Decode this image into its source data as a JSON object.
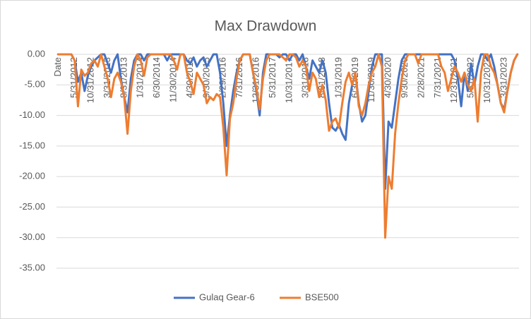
{
  "chart_data": {
    "type": "line",
    "title": "Max Drawdown",
    "categories": [
      "Date",
      null,
      null,
      null,
      null,
      "5/31/2012",
      null,
      null,
      null,
      null,
      "10/31/2012",
      null,
      null,
      null,
      null,
      "3/31/2013",
      null,
      null,
      null,
      null,
      "8/31/2013",
      null,
      null,
      null,
      null,
      "1/31/2014",
      null,
      null,
      null,
      null,
      "6/30/2014",
      null,
      null,
      null,
      null,
      "11/30/2014",
      null,
      null,
      null,
      null,
      "4/30/2015",
      null,
      null,
      null,
      null,
      "9/30/2015",
      null,
      null,
      null,
      null,
      "2/29/2016",
      null,
      null,
      null,
      null,
      "7/31/2016",
      null,
      null,
      null,
      null,
      "12/31/2016",
      null,
      null,
      null,
      null,
      "5/31/2017",
      null,
      null,
      null,
      null,
      "10/31/2017",
      null,
      null,
      null,
      null,
      "3/31/2018",
      null,
      null,
      null,
      null,
      "8/31/2018",
      null,
      null,
      null,
      null,
      "1/31/2019",
      null,
      null,
      null,
      null,
      "6/30/2019",
      null,
      null,
      null,
      null,
      "11/30/2019",
      null,
      null,
      null,
      null,
      "4/30/2020",
      null,
      null,
      null,
      null,
      "9/30/2020",
      null,
      null,
      null,
      null,
      "2/28/2021",
      null,
      null,
      null,
      null,
      "7/31/2021",
      null,
      null,
      null,
      null,
      "12/31/2021",
      null,
      null,
      null,
      null,
      "5/31/2022",
      null,
      null,
      null,
      null,
      "10/31/2022",
      null,
      null,
      null,
      null,
      "3/31/2023",
      null,
      null,
      null,
      null
    ],
    "series": [
      {
        "name": "Gulaq Gear-6",
        "color": "#4472c4",
        "values": [
          0,
          0,
          0,
          0,
          0,
          -1,
          -4.5,
          -3,
          -6,
          -3.5,
          -2,
          -1,
          -0.5,
          0,
          0,
          -1.5,
          -3,
          -1,
          0,
          -4,
          -7,
          -9.5,
          -4,
          -1,
          0,
          0,
          -1,
          0,
          0,
          0,
          0,
          0,
          0,
          -1,
          0,
          0,
          0,
          0,
          0,
          -1,
          -1.5,
          -0.5,
          -2,
          -1,
          -0.5,
          -2,
          -1,
          0,
          0,
          -3,
          -8,
          -15,
          -10,
          -6,
          -3,
          -1,
          0,
          0,
          0,
          -3,
          -6,
          -10,
          -3,
          0,
          0,
          0,
          0,
          -0.5,
          0,
          0,
          -1,
          0,
          0,
          -1,
          0,
          -2,
          -4,
          -1,
          -2,
          -3,
          -1,
          -3,
          -8,
          -12,
          -12.5,
          -11.5,
          -13,
          -14,
          -8,
          -5,
          -3,
          -8,
          -11,
          -10,
          -6,
          -2,
          0,
          0,
          0,
          -22,
          -11,
          -12,
          -8,
          -4,
          -1,
          0,
          0,
          0,
          0,
          0,
          0,
          0,
          0,
          0,
          0,
          0,
          0,
          0,
          0,
          0,
          -1,
          -4,
          -8.5,
          -3,
          -6,
          -1.5,
          -5,
          -2,
          0,
          0,
          -1,
          0,
          -2,
          -5,
          -8,
          -9,
          -6,
          -3,
          -1,
          0
        ]
      },
      {
        "name": "BSE500",
        "color": "#ed7d31",
        "values": [
          0,
          0,
          0,
          0,
          0,
          -1,
          -8.5,
          -2.5,
          -3.5,
          -3,
          -1.5,
          -1,
          -2,
          0,
          -2,
          -4,
          -7,
          -4,
          -3,
          -4.5,
          -7,
          -13,
          -6,
          -2,
          0,
          -1,
          -3.5,
          -0.5,
          0,
          0,
          0,
          0,
          0,
          0,
          0,
          -1,
          -2.5,
          0,
          0,
          -3,
          -4.5,
          -6.5,
          -3,
          -4,
          -5,
          -8,
          -7,
          -7.5,
          -6.5,
          -7,
          -12,
          -19.8,
          -10.5,
          -8,
          -4,
          -1,
          0,
          0,
          0,
          -3,
          -5.5,
          -9,
          -4,
          -1,
          0,
          0,
          0,
          0,
          -0.5,
          -1,
          0,
          0,
          -0.5,
          -2,
          -1,
          -2,
          -6,
          -3,
          -4,
          -7,
          -5,
          -7.5,
          -12.5,
          -11,
          -10.5,
          -12,
          -8,
          -4.5,
          -3,
          -5,
          -3,
          -8.5,
          -10,
          -8,
          -5,
          -3,
          -2,
          0,
          -2,
          -30,
          -20,
          -22,
          -13,
          -8,
          -4,
          -1,
          0,
          0,
          0,
          -1.5,
          0,
          0,
          0,
          0,
          0,
          0,
          -2,
          -3,
          -6,
          -4,
          -2,
          -3,
          -4.5,
          -3,
          -5,
          -6,
          -4,
          -11,
          -3,
          0,
          0,
          -2,
          -3,
          -5,
          -8,
          -9.5,
          -6,
          -3,
          -1,
          0
        ]
      }
    ],
    "ylim": [
      -35,
      0
    ],
    "yticks": [
      {
        "value": 0,
        "label": "0.00"
      },
      {
        "value": -5,
        "label": "-5.00"
      },
      {
        "value": -10,
        "label": "-10.00"
      },
      {
        "value": -15,
        "label": "-15.00"
      },
      {
        "value": -20,
        "label": "-20.00"
      },
      {
        "value": -25,
        "label": "-25.00"
      },
      {
        "value": -30,
        "label": "-30.00"
      },
      {
        "value": -35,
        "label": "-35.00"
      }
    ],
    "grid": true,
    "legend": "bottom"
  }
}
